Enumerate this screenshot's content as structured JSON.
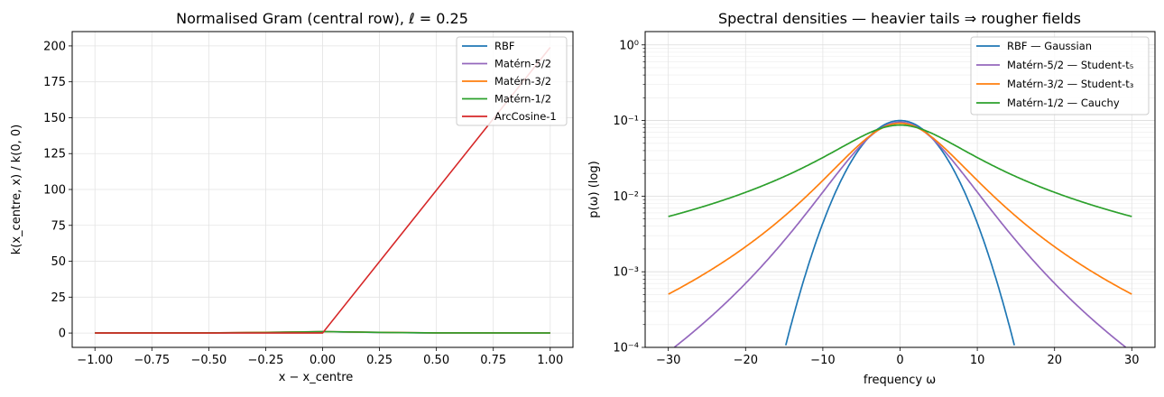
{
  "chart_data": [
    {
      "type": "line",
      "title": "Normalised Gram (central row), ℓ = 0.25",
      "xlabel": "x − x_centre",
      "ylabel": "k(x_centre, x) / k(0, 0)",
      "xlim": [
        -1.1,
        1.1
      ],
      "ylim": [
        -10,
        210
      ],
      "yscale": "linear",
      "grid": true,
      "legend_position": "top-right",
      "x_ticks": [
        -1.0,
        -0.75,
        -0.5,
        -0.25,
        0.0,
        0.25,
        0.5,
        0.75,
        1.0
      ],
      "x_tick_labels": [
        "−1.00",
        "−0.75",
        "−0.50",
        "−0.25",
        "0.00",
        "0.25",
        "0.50",
        "0.75",
        "1.00"
      ],
      "y_ticks": [
        0,
        25,
        50,
        75,
        100,
        125,
        150,
        175,
        200
      ],
      "y_tick_labels": [
        "0",
        "25",
        "50",
        "75",
        "100",
        "125",
        "150",
        "175",
        "200"
      ],
      "series": [
        {
          "name": "RBF",
          "color": "#1f77b4",
          "x": [
            -1.0,
            -0.5,
            -0.25,
            0.0,
            0.25,
            0.5,
            1.0
          ],
          "y": [
            0,
            0,
            0.37,
            1.0,
            0.37,
            0,
            0
          ]
        },
        {
          "name": "Matérn-5/2",
          "color": "#9467bd",
          "x": [
            -1.0,
            -0.5,
            -0.25,
            0.0,
            0.25,
            0.5,
            1.0
          ],
          "y": [
            0,
            0.14,
            0.52,
            1.0,
            0.52,
            0.14,
            0
          ]
        },
        {
          "name": "Matérn-3/2",
          "color": "#ff7f0e",
          "x": [
            -1.0,
            -0.5,
            -0.25,
            0.0,
            0.25,
            0.5,
            1.0
          ],
          "y": [
            0,
            0.14,
            0.48,
            1.0,
            0.48,
            0.14,
            0
          ]
        },
        {
          "name": "Matérn-1/2",
          "color": "#2ca02c",
          "x": [
            -1.0,
            -0.5,
            -0.25,
            0.0,
            0.3,
            0.5,
            1.0
          ],
          "y": [
            0.02,
            0.14,
            0.37,
            1.0,
            0.3,
            0.14,
            0.02
          ]
        },
        {
          "name": "ArcCosine-1",
          "color": "#d62728",
          "x": [
            -1.0,
            0.0,
            1.0
          ],
          "y": [
            0,
            0,
            199
          ]
        }
      ]
    },
    {
      "type": "line",
      "title": "Spectral densities — heavier tails ⇒ rougher fields",
      "xlabel": "frequency ω",
      "ylabel": "p(ω) (log)",
      "xlim": [
        -33,
        33
      ],
      "ylim": [
        0.0001,
        1.5
      ],
      "yscale": "log",
      "grid": true,
      "legend_position": "top-right",
      "x_ticks": [
        -30,
        -20,
        -10,
        0,
        10,
        20,
        30
      ],
      "x_tick_labels": [
        "−30",
        "−20",
        "−10",
        "0",
        "10",
        "20",
        "30"
      ],
      "y_ticks": [
        0.0001,
        0.001,
        0.01,
        0.1,
        1
      ],
      "y_tick_labels": [
        "10⁻⁴",
        "10⁻³",
        "10⁻²",
        "10⁻¹",
        "10⁰"
      ],
      "series": [
        {
          "name": "RBF — Gaussian",
          "color": "#1f77b4",
          "family": "gaussian",
          "peak": 0.1,
          "x_range": [
            -30,
            30
          ]
        },
        {
          "name": "Matérn-5/2 — Student-t₅",
          "color": "#9467bd",
          "family": "student",
          "nu": 5,
          "peak": 0.095,
          "x_range": [
            -30,
            30
          ]
        },
        {
          "name": "Matérn-3/2 — Student-t₃",
          "color": "#ff7f0e",
          "family": "student",
          "nu": 3,
          "peak": 0.092,
          "x_range": [
            -30,
            30
          ]
        },
        {
          "name": "Matérn-1/2 — Cauchy",
          "color": "#2ca02c",
          "family": "cauchy",
          "peak": 0.087,
          "x_range": [
            -30,
            30
          ]
        }
      ]
    }
  ]
}
